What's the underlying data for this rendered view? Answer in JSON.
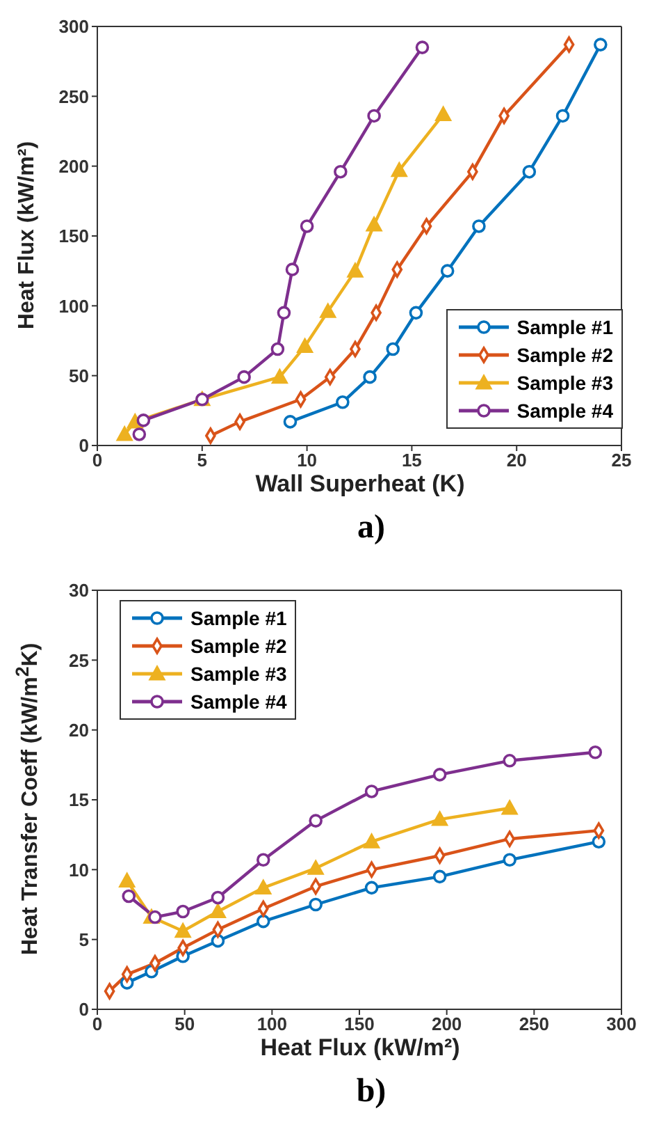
{
  "chart_data": [
    {
      "type": "line",
      "xlabel": "Wall Superheat (K)",
      "ylabel": "Heat Flux (kW/m²)",
      "xlim": [
        0,
        25
      ],
      "xticks": [
        0,
        5,
        10,
        15,
        20,
        25
      ],
      "ylim": [
        0,
        300
      ],
      "yticks": [
        0,
        50,
        100,
        150,
        200,
        250,
        300
      ],
      "grid": false,
      "legend": "bottom right",
      "line_style": "solid",
      "annotations": [
        "a)"
      ],
      "series": [
        {
          "name": "Sample #1",
          "color": "#0072bd",
          "marker": "circle",
          "x": [
            9.2,
            11.7,
            13.0,
            14.1,
            15.2,
            16.7,
            18.2,
            20.6,
            22.2,
            24.0
          ],
          "values": [
            17,
            31,
            49,
            69,
            95,
            125,
            157,
            196,
            236,
            287
          ]
        },
        {
          "name": "Sample #2",
          "color": "#d95319",
          "marker": "diamond",
          "x": [
            5.4,
            6.8,
            9.7,
            11.1,
            12.3,
            13.3,
            14.3,
            15.7,
            17.9,
            19.4,
            22.5
          ],
          "values": [
            7,
            17,
            33,
            49,
            69,
            95,
            126,
            157,
            196,
            236,
            287
          ]
        },
        {
          "name": "Sample #3",
          "color": "#edb120",
          "marker": "triangle",
          "x": [
            1.3,
            1.8,
            5.0,
            8.7,
            9.9,
            11.0,
            12.3,
            13.2,
            14.4,
            16.5
          ],
          "values": [
            8,
            17,
            33,
            49,
            71,
            96,
            125,
            158,
            197,
            237
          ]
        },
        {
          "name": "Sample #4",
          "color": "#7e2f8e",
          "marker": "circle",
          "x": [
            2.0,
            2.2,
            5.0,
            7.0,
            8.6,
            8.9,
            9.3,
            10.0,
            11.6,
            13.2,
            15.5
          ],
          "values": [
            8,
            18,
            33,
            49,
            69,
            95,
            126,
            157,
            196,
            236,
            285
          ]
        }
      ]
    },
    {
      "type": "line",
      "xlabel": "Heat Flux (kW/m²)",
      "ylabel": "Heat Transfer Coeff (kW/m$^{2}$K)",
      "xlim": [
        0,
        300
      ],
      "xticks": [
        0,
        50,
        100,
        150,
        200,
        250,
        300
      ],
      "ylim": [
        0,
        30
      ],
      "yticks": [
        0,
        5,
        10,
        15,
        20,
        25,
        30
      ],
      "grid": false,
      "legend": "top left",
      "line_style": "solid",
      "annotations": [
        "b)"
      ],
      "series": [
        {
          "name": "Sample #1",
          "color": "#0072bd",
          "marker": "circle",
          "x": [
            17,
            31,
            49,
            69,
            95,
            125,
            157,
            196,
            236,
            287
          ],
          "values": [
            1.9,
            2.7,
            3.8,
            4.9,
            6.3,
            7.5,
            8.7,
            9.5,
            10.7,
            12.0
          ]
        },
        {
          "name": "Sample #2",
          "color": "#d95319",
          "marker": "diamond",
          "x": [
            7,
            17,
            33,
            49,
            69,
            95,
            125,
            157,
            196,
            236,
            287
          ],
          "values": [
            1.3,
            2.5,
            3.3,
            4.4,
            5.7,
            7.2,
            8.8,
            10.0,
            11.0,
            12.2,
            12.8
          ]
        },
        {
          "name": "Sample #3",
          "color": "#edb120",
          "marker": "triangle",
          "x": [
            17,
            31,
            49,
            69,
            95,
            125,
            157,
            196,
            236
          ],
          "values": [
            9.2,
            6.6,
            5.6,
            7.0,
            8.7,
            10.1,
            12.0,
            13.6,
            14.4
          ]
        },
        {
          "name": "Sample #4",
          "color": "#7e2f8e",
          "marker": "circle",
          "x": [
            18,
            33,
            49,
            69,
            95,
            125,
            157,
            196,
            236,
            285
          ],
          "values": [
            8.1,
            6.6,
            7.0,
            8.0,
            10.7,
            13.5,
            15.6,
            16.8,
            17.8,
            18.4
          ]
        }
      ]
    }
  ]
}
